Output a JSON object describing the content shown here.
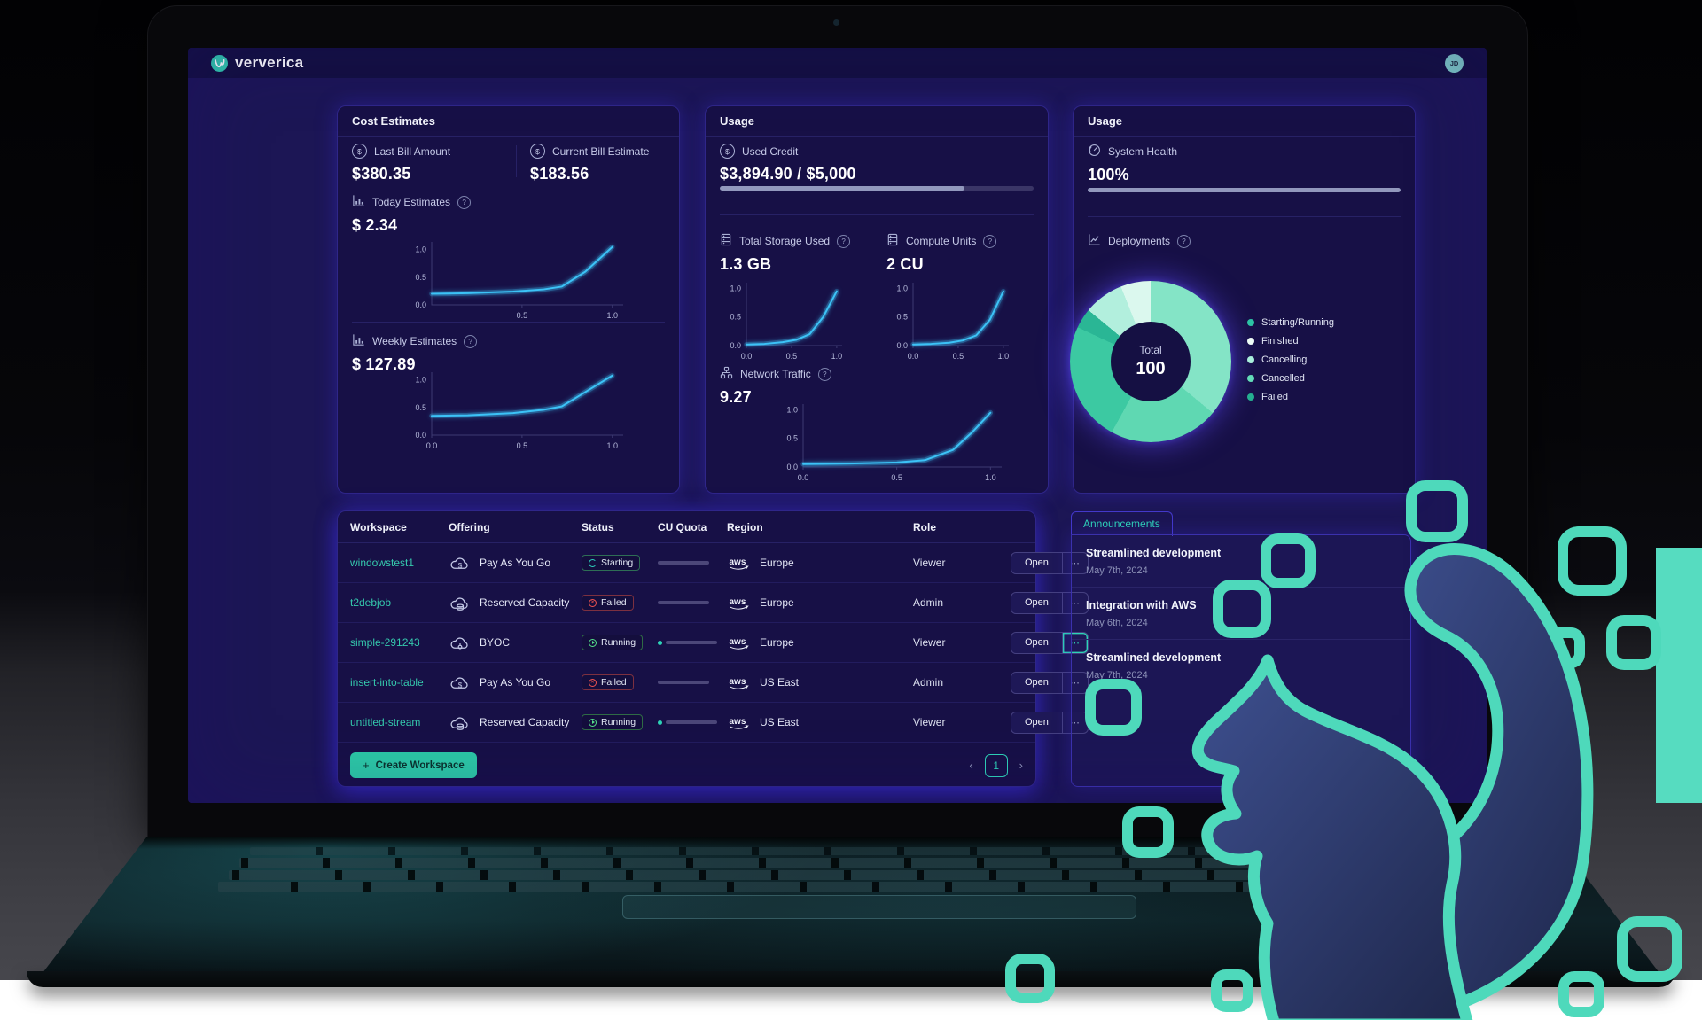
{
  "header": {
    "brand": "ververica",
    "avatar_initials": "JD"
  },
  "cost_card": {
    "title": "Cost Estimates",
    "last_bill": {
      "label": "Last Bill Amount",
      "value": "$380.35"
    },
    "current_bill": {
      "label": "Current Bill Estimate",
      "value": "$183.56"
    },
    "today": {
      "label": "Today Estimates",
      "value": "$ 2.34"
    },
    "weekly": {
      "label": "Weekly Estimates",
      "value": "$ 127.89"
    }
  },
  "usage_card": {
    "title": "Usage",
    "used_credit": {
      "label": "Used Credit",
      "value": "$3,894.90 / $5,000",
      "percent": 78
    },
    "storage": {
      "label": "Total Storage Used",
      "value": "1.3 GB"
    },
    "compute": {
      "label": "Compute Units",
      "value": "2 CU"
    },
    "network": {
      "label": "Network Traffic",
      "value": "9.27"
    }
  },
  "health_card": {
    "title": "Usage",
    "system_health": {
      "label": "System Health",
      "value": "100%",
      "percent": 100
    },
    "deployments_label": "Deployments"
  },
  "workspace_table": {
    "columns": [
      "Workspace",
      "Offering",
      "Status",
      "CU Quota",
      "Region",
      "Role"
    ],
    "rows": [
      {
        "name": "windowstest1",
        "offering": "Pay As You Go",
        "offering_icon": "cloud-dollar",
        "status": "Starting",
        "status_kind": "starting",
        "quota_percent": 0,
        "region": "Europe",
        "region_icon": "aws",
        "role": "Viewer",
        "action": "Open",
        "menu": "⋯",
        "menu_highlight": false
      },
      {
        "name": "t2debjob",
        "offering": "Reserved Capacity",
        "offering_icon": "cloud-database",
        "status": "Failed",
        "status_kind": "failed",
        "quota_percent": 0,
        "region": "Europe",
        "region_icon": "aws",
        "role": "Admin",
        "action": "Open",
        "menu": "⋯",
        "menu_highlight": false
      },
      {
        "name": "simple-291243",
        "offering": "BYOC",
        "offering_icon": "cloud-node",
        "status": "Running",
        "status_kind": "running",
        "quota_percent": 4,
        "region": "Europe",
        "region_icon": "aws",
        "role": "Viewer",
        "action": "Open",
        "menu": "⋯",
        "menu_highlight": true
      },
      {
        "name": "insert-into-table",
        "offering": "Pay As You Go",
        "offering_icon": "cloud-dollar",
        "status": "Failed",
        "status_kind": "failed",
        "quota_percent": 0,
        "region": "US East",
        "region_icon": "aws",
        "role": "Admin",
        "action": "Open",
        "menu": "⋯",
        "menu_highlight": false
      },
      {
        "name": "untitled-stream",
        "offering": "Reserved Capacity",
        "offering_icon": "cloud-database",
        "status": "Running",
        "status_kind": "running",
        "quota_percent": 4,
        "region": "US East",
        "region_icon": "aws",
        "role": "Viewer",
        "action": "Open",
        "menu": "⋯",
        "menu_highlight": false
      }
    ],
    "create_button": "Create Workspace",
    "pagination": {
      "prev": "‹",
      "page": "1",
      "next": "›"
    }
  },
  "announcements": {
    "title": "Announcements",
    "items": [
      {
        "title": "Streamlined development",
        "date": "May 7th, 2024"
      },
      {
        "title": "Integration with AWS",
        "date": "May 6th, 2024"
      },
      {
        "title": "Streamlined development",
        "date": "May 7th, 2024"
      }
    ]
  },
  "colors": {
    "accent_teal": "#2ed3b7",
    "chart_cyan": "#3cc3f7",
    "card_border": "#2f2689",
    "status_green": "#55e08a",
    "status_red": "#ef5350"
  },
  "chart_data": [
    {
      "id": "today_estimates",
      "type": "line",
      "title": "Today Estimates",
      "value_label": "$ 2.34",
      "x": [
        0,
        0.2,
        0.45,
        0.62,
        0.72,
        0.85,
        1.0
      ],
      "y": [
        0.2,
        0.21,
        0.24,
        0.28,
        0.33,
        0.6,
        1.05
      ],
      "x_ticks": [
        "0.5",
        "1.0"
      ],
      "y_ticks": [
        "1.0",
        "0.5",
        "0.0"
      ],
      "xlim": [
        0,
        1.06
      ],
      "ylim": [
        0,
        1.14
      ],
      "color": "#3cc3f7"
    },
    {
      "id": "weekly_estimates",
      "type": "line",
      "title": "Weekly Estimates",
      "value_label": "$ 127.89",
      "x": [
        0,
        0.2,
        0.45,
        0.62,
        0.72,
        0.85,
        1.0
      ],
      "y": [
        0.35,
        0.36,
        0.4,
        0.46,
        0.52,
        0.78,
        1.08
      ],
      "x_ticks": [
        "0.0",
        "0.5",
        "1.0"
      ],
      "y_ticks": [
        "1.0",
        "0.5",
        "0.0"
      ],
      "xlim": [
        0,
        1.06
      ],
      "ylim": [
        0,
        1.14
      ],
      "color": "#3cc3f7"
    },
    {
      "id": "total_storage",
      "type": "line",
      "title": "Total Storage Used",
      "value_label": "1.3 GB",
      "x": [
        0,
        0.2,
        0.4,
        0.55,
        0.7,
        0.85,
        1.0
      ],
      "y": [
        0.02,
        0.03,
        0.06,
        0.1,
        0.2,
        0.5,
        0.95
      ],
      "x_ticks": [
        "0.0",
        "0.5",
        "1.0"
      ],
      "y_ticks": [
        "1.0",
        "0.5",
        "0.0"
      ],
      "xlim": [
        0,
        1.06
      ],
      "ylim": [
        0,
        1.1
      ],
      "color": "#3cc3f7"
    },
    {
      "id": "compute_units",
      "type": "line",
      "title": "Compute Units",
      "value_label": "2 CU",
      "x": [
        0,
        0.2,
        0.4,
        0.55,
        0.7,
        0.85,
        1.0
      ],
      "y": [
        0.02,
        0.03,
        0.05,
        0.09,
        0.18,
        0.45,
        0.95
      ],
      "x_ticks": [
        "0.0",
        "0.5",
        "1.0"
      ],
      "y_ticks": [
        "1.0",
        "0.5",
        "0.0"
      ],
      "xlim": [
        0,
        1.06
      ],
      "ylim": [
        0,
        1.1
      ],
      "color": "#3cc3f7"
    },
    {
      "id": "network_traffic",
      "type": "line",
      "title": "Network Traffic",
      "value_label": "9.27",
      "x": [
        0,
        0.25,
        0.5,
        0.65,
        0.8,
        0.9,
        1.0
      ],
      "y": [
        0.05,
        0.06,
        0.08,
        0.12,
        0.3,
        0.6,
        0.95
      ],
      "x_ticks": [
        "0.0",
        "0.5",
        "1.0"
      ],
      "y_ticks": [
        "1.0",
        "0.5",
        "0.0"
      ],
      "xlim": [
        0,
        1.06
      ],
      "ylim": [
        0,
        1.1
      ],
      "color": "#3cc3f7"
    },
    {
      "id": "deployments_donut",
      "type": "donut",
      "title": "Deployments",
      "center_label": "Total",
      "center_value": "100",
      "segments": [
        {
          "value": 36,
          "color": "#84e4c6"
        },
        {
          "value": 22,
          "color": "#5fd8b2"
        },
        {
          "value": 24,
          "color": "#3cc9a2"
        },
        {
          "value": 4,
          "color": "#2ab695"
        },
        {
          "value": 8,
          "color": "#b2efdd"
        },
        {
          "value": 6,
          "color": "#dbf8ee"
        }
      ],
      "legend": [
        {
          "label": "Starting/Running",
          "color": "#2cc3a5"
        },
        {
          "label": "Finished",
          "color": "#eefcf6"
        },
        {
          "label": "Cancelling",
          "color": "#a9efdc"
        },
        {
          "label": "Cancelled",
          "color": "#63dcb8"
        },
        {
          "label": "Failed",
          "color": "#25ae90"
        }
      ],
      "legend_position": "right"
    }
  ]
}
